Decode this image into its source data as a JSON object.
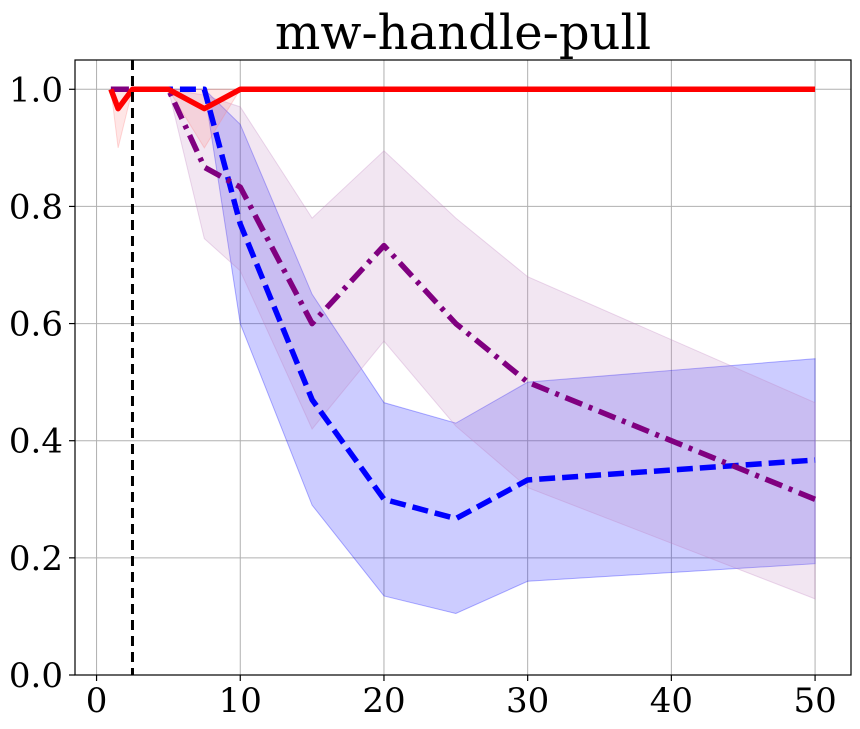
{
  "chart_data": {
    "type": "line",
    "title": "mw-handle-pull",
    "xlabel": "",
    "ylabel": "",
    "xlim": [
      -1.5,
      52.5
    ],
    "ylim": [
      0.0,
      1.05
    ],
    "x_ticks": [
      0,
      10,
      20,
      30,
      40,
      50
    ],
    "y_ticks": [
      0.0,
      0.2,
      0.4,
      0.6,
      0.8,
      1.0
    ],
    "x_tick_labels": [
      "0",
      "10",
      "20",
      "30",
      "40",
      "50"
    ],
    "y_tick_labels": [
      "0.0",
      "0.2",
      "0.4",
      "0.6",
      "0.8",
      "1.0"
    ],
    "grid": true,
    "vertical_marker": {
      "x": 2.5,
      "style": "dashed",
      "color": "#000000"
    },
    "series": [
      {
        "color": "#0000ff",
        "band_color": "#0000ff",
        "dash": "dashed",
        "x": [
          1,
          5,
          7.5,
          10,
          15,
          20,
          25,
          30,
          50
        ],
        "y": [
          1.0,
          1.0,
          1.0,
          0.77,
          0.47,
          0.3,
          0.267,
          0.333,
          0.367
        ],
        "lower": [
          1.0,
          1.0,
          1.0,
          0.6,
          0.29,
          0.135,
          0.105,
          0.16,
          0.19
        ],
        "upper": [
          1.0,
          1.0,
          1.0,
          0.94,
          0.65,
          0.465,
          0.43,
          0.5,
          0.54
        ]
      },
      {
        "color": "#800080",
        "band_color": "#c080c0",
        "dash": "dashdot",
        "x": [
          1,
          5,
          7.5,
          10,
          15,
          20,
          25,
          30,
          50
        ],
        "y": [
          1.0,
          1.0,
          0.867,
          0.833,
          0.6,
          0.733,
          0.6,
          0.5,
          0.3
        ],
        "lower": [
          1.0,
          1.0,
          0.745,
          0.69,
          0.42,
          0.57,
          0.425,
          0.32,
          0.13
        ],
        "upper": [
          1.0,
          1.0,
          0.99,
          0.97,
          0.78,
          0.895,
          0.78,
          0.68,
          0.465
        ]
      },
      {
        "color": "#ff0000",
        "band_color": "#ff8080",
        "dash": "solid",
        "x": [
          1,
          1.5,
          2.5,
          5,
          7.5,
          10,
          50
        ],
        "y": [
          1.0,
          0.967,
          1.0,
          1.0,
          0.967,
          1.0,
          1.0
        ],
        "lower": [
          1.0,
          0.9,
          1.0,
          1.0,
          0.9,
          1.0,
          1.0
        ],
        "upper": [
          1.0,
          1.0,
          1.0,
          1.0,
          1.0,
          1.0,
          1.0
        ]
      }
    ]
  }
}
